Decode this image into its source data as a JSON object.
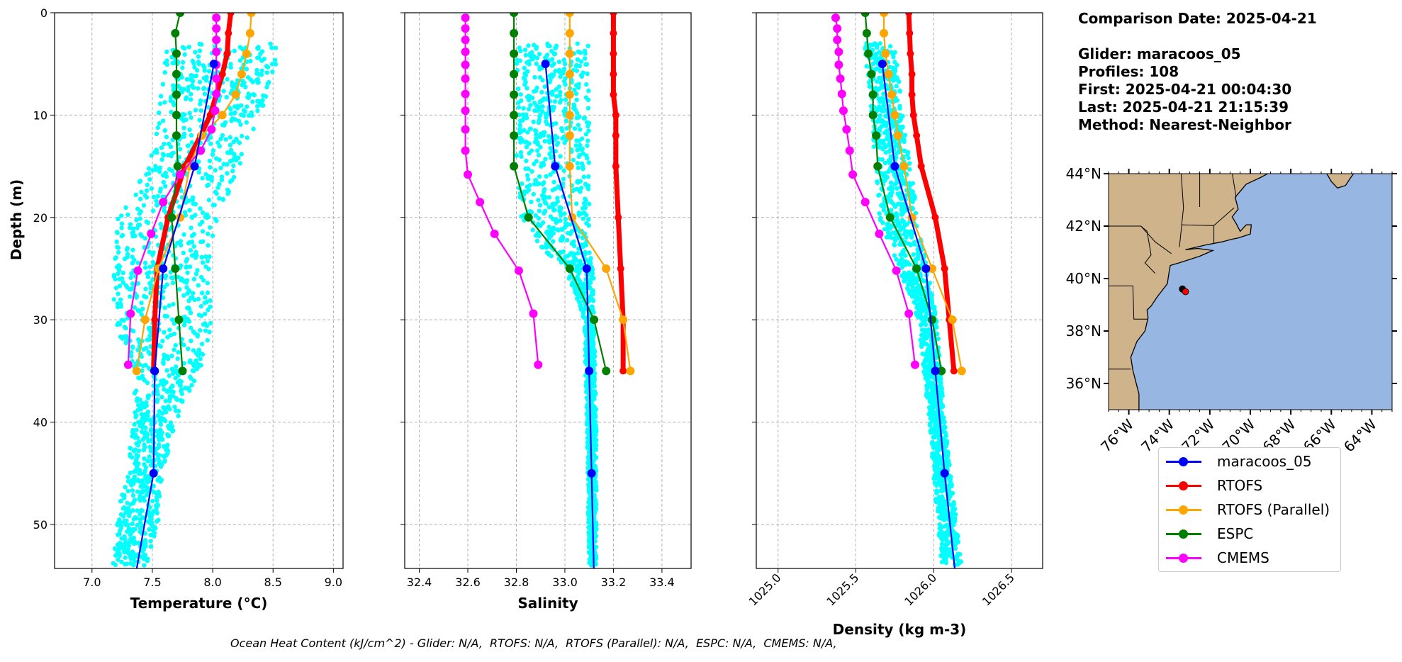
{
  "info": {
    "comparison_date": "Comparison Date: 2025-04-21",
    "glider": "Glider: maracoos_05",
    "profiles": "Profiles: 108",
    "first": "First: 2025-04-21 00:04:30",
    "last": "Last: 2025-04-21 21:15:39",
    "method": "Method: Nearest-Neighbor"
  },
  "footer": "Ocean Heat Content (kJ/cm^2) - Glider: N/A,  RTOFS: N/A,  RTOFS (Parallel): N/A,  ESPC: N/A,  CMEMS: N/A,",
  "legend": [
    {
      "name": "maracoos_05",
      "color": "#0000ff"
    },
    {
      "name": "RTOFS",
      "color": "#ff0000"
    },
    {
      "name": "RTOFS (Parallel)",
      "color": "#ffa500"
    },
    {
      "name": "ESPC",
      "color": "#008000"
    },
    {
      "name": "CMEMS",
      "color": "#ff00ff"
    }
  ],
  "glider_scatter_color": "#00ffff",
  "depths": {
    "maracoos_05": [
      5,
      15,
      25,
      35,
      45,
      55
    ],
    "RTOFS": [
      0,
      2,
      4,
      6,
      8,
      10,
      12,
      15,
      20,
      25,
      30,
      35
    ],
    "RTOFS (Parallel)": [
      0,
      2,
      4,
      6,
      8,
      10,
      12,
      15,
      20,
      25,
      30,
      35
    ],
    "ESPC": [
      0,
      2,
      4,
      6,
      8,
      10,
      12,
      15,
      20,
      25,
      30,
      35
    ],
    "CMEMS": [
      0.49,
      1.54,
      2.65,
      3.82,
      5.08,
      6.44,
      7.93,
      9.57,
      11.4,
      13.47,
      15.81,
      18.5,
      21.6,
      25.2,
      29.4,
      34.4
    ]
  },
  "chart_data": [
    {
      "type": "line",
      "xlabel": "Temperature (°C)",
      "ylabel": "Depth (m)",
      "xlim": [
        6.69,
        9.08
      ],
      "ylim": [
        54.3,
        0
      ],
      "grid": true,
      "xticks": [
        "7.0",
        "7.5",
        "8.0",
        "8.5",
        "9.0"
      ],
      "yticks": [
        "0",
        "10",
        "20",
        "30",
        "40",
        "50"
      ],
      "series": [
        {
          "name": "maracoos_05",
          "values": [
            8.01,
            7.85,
            7.59,
            7.52,
            7.51,
            7.36
          ]
        },
        {
          "name": "RTOFS",
          "values": [
            8.15,
            8.13,
            8.12,
            8.08,
            8.03,
            7.98,
            7.9,
            7.77,
            7.63,
            7.54,
            7.52,
            7.51
          ]
        },
        {
          "name": "RTOFS (Parallel)",
          "values": [
            8.32,
            8.31,
            8.28,
            8.24,
            8.19,
            8.08,
            7.91,
            7.81,
            7.73,
            7.55,
            7.44,
            7.37
          ]
        },
        {
          "name": "ESPC",
          "values": [
            7.73,
            7.69,
            7.7,
            7.7,
            7.7,
            7.7,
            7.7,
            7.71,
            7.66,
            7.69,
            7.72,
            7.75
          ]
        },
        {
          "name": "CMEMS",
          "values": [
            8.03,
            8.03,
            8.03,
            8.03,
            8.03,
            8.03,
            8.03,
            8.02,
            7.99,
            7.9,
            7.73,
            7.59,
            7.49,
            7.38,
            7.32,
            7.3
          ]
        }
      ],
      "glider_profile_range": {
        "depth": [
          3,
          5,
          10,
          15,
          20,
          25,
          30,
          35,
          40,
          45,
          50,
          54
        ],
        "min": [
          7.62,
          7.6,
          7.55,
          7.47,
          7.2,
          7.18,
          7.18,
          7.35,
          7.35,
          7.28,
          7.2,
          7.17
        ],
        "max": [
          8.52,
          8.55,
          8.4,
          8.22,
          8.05,
          8.0,
          8.0,
          7.9,
          7.7,
          7.58,
          7.55,
          7.45
        ]
      }
    },
    {
      "type": "line",
      "xlabel": "Salinity",
      "xlim": [
        32.34,
        33.52
      ],
      "ylim": [
        54.3,
        0
      ],
      "grid": true,
      "xticks": [
        "32.4",
        "32.6",
        "32.8",
        "33.0",
        "33.2",
        "33.4"
      ],
      "series": [
        {
          "name": "maracoos_05",
          "values": [
            32.92,
            32.96,
            33.09,
            33.1,
            33.11,
            33.12
          ]
        },
        {
          "name": "RTOFS",
          "values": [
            33.2,
            33.2,
            33.2,
            33.2,
            33.2,
            33.21,
            33.21,
            33.21,
            33.22,
            33.23,
            33.24,
            33.24
          ]
        },
        {
          "name": "RTOFS (Parallel)",
          "values": [
            33.02,
            33.02,
            33.02,
            33.02,
            33.02,
            33.02,
            33.02,
            33.02,
            33.03,
            33.17,
            33.24,
            33.27
          ]
        },
        {
          "name": "ESPC",
          "values": [
            32.79,
            32.79,
            32.79,
            32.79,
            32.79,
            32.79,
            32.79,
            32.79,
            32.85,
            33.02,
            33.12,
            33.17
          ]
        },
        {
          "name": "CMEMS",
          "values": [
            32.59,
            32.59,
            32.59,
            32.59,
            32.59,
            32.59,
            32.59,
            32.59,
            32.59,
            32.59,
            32.6,
            32.65,
            32.71,
            32.81,
            32.87,
            32.89
          ]
        }
      ],
      "glider_profile_range": {
        "depth": [
          3,
          10,
          15,
          20,
          23,
          25,
          30,
          40,
          54
        ],
        "min": [
          32.8,
          32.8,
          32.8,
          32.82,
          32.9,
          33.0,
          33.08,
          33.09,
          33.1
        ],
        "max": [
          33.1,
          33.1,
          33.1,
          33.1,
          33.1,
          33.12,
          33.12,
          33.13,
          33.13
        ]
      }
    },
    {
      "type": "line",
      "xlabel": "Density (kg m-3)",
      "xlim": [
        1024.86,
        1026.7
      ],
      "ylim": [
        54.3,
        0
      ],
      "grid": true,
      "xticks": [
        "1025.0",
        "1025.5",
        "1026.0",
        "1026.5"
      ],
      "series": [
        {
          "name": "maracoos_05",
          "values": [
            1025.67,
            1025.75,
            1025.95,
            1026.01,
            1026.07,
            1026.14
          ]
        },
        {
          "name": "RTOFS",
          "values": [
            1025.84,
            1025.845,
            1025.85,
            1025.86,
            1025.86,
            1025.87,
            1025.89,
            1025.92,
            1026.01,
            1026.07,
            1026.1,
            1026.13
          ]
        },
        {
          "name": "RTOFS (Parallel)",
          "values": [
            1025.68,
            1025.68,
            1025.69,
            1025.71,
            1025.73,
            1025.75,
            1025.77,
            1025.81,
            1025.86,
            1025.99,
            1026.12,
            1026.18
          ]
        },
        {
          "name": "ESPC",
          "values": [
            1025.56,
            1025.57,
            1025.58,
            1025.6,
            1025.61,
            1025.61,
            1025.63,
            1025.64,
            1025.72,
            1025.89,
            1025.99,
            1026.05
          ]
        },
        {
          "name": "CMEMS",
          "values": [
            1025.37,
            1025.38,
            1025.38,
            1025.39,
            1025.39,
            1025.4,
            1025.41,
            1025.42,
            1025.44,
            1025.46,
            1025.48,
            1025.56,
            1025.65,
            1025.76,
            1025.84,
            1025.88
          ]
        }
      ],
      "glider_profile_range": {
        "depth": [
          3,
          10,
          20,
          30,
          40,
          54
        ],
        "min": [
          1025.55,
          1025.6,
          1025.65,
          1025.9,
          1025.97,
          1026.05
        ],
        "max": [
          1025.75,
          1025.8,
          1025.9,
          1026.02,
          1026.07,
          1026.18
        ]
      }
    }
  ],
  "map": {
    "lon_range": [
      -77,
      -63
    ],
    "lat_range": [
      35,
      44
    ],
    "lat_ticks": [
      "36°N",
      "38°N",
      "40°N",
      "42°N",
      "44°N"
    ],
    "lon_ticks": [
      "76°W",
      "74°W",
      "72°W",
      "70°W",
      "68°W",
      "66°W",
      "64°W"
    ],
    "glider_position": {
      "lon": -73.2,
      "lat": 39.5
    },
    "ocean_color": "#97b6e1",
    "land_color": "#cfb38b",
    "marker_color": "#ff0000"
  }
}
